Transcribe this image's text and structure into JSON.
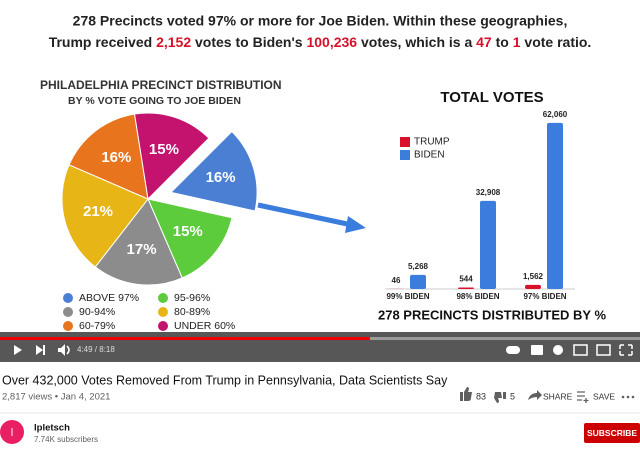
{
  "headline": {
    "line1": "278 Precincts voted 97% or more for Joe Biden. Within these geographies,",
    "line2": [
      {
        "text": "Trump received ",
        "highlight": false
      },
      {
        "text": "2,152",
        "highlight": true
      },
      {
        "text": " votes to Biden's ",
        "highlight": false
      },
      {
        "text": "100,236",
        "highlight": true
      },
      {
        "text": " votes, which is a ",
        "highlight": false
      },
      {
        "text": "47",
        "highlight": true
      },
      {
        "text": " to ",
        "highlight": false
      },
      {
        "text": "1",
        "highlight": true
      },
      {
        "text": " vote ratio.",
        "highlight": false
      }
    ]
  },
  "pie_chart": {
    "type": "pie",
    "title": "PHILADELPHIA PRECINCT DISTRIBUTION",
    "subtitle": "BY % VOTE GOING TO JOE BIDEN",
    "categories": [
      "ABOVE 97%",
      "95-96%",
      "90-94%",
      "80-89%",
      "60-79%",
      "UNDER 60%"
    ],
    "values": [
      16,
      15,
      17,
      21,
      16,
      15
    ],
    "value_labels": [
      "16%",
      "15%",
      "17%",
      "21%",
      "16%",
      "15%"
    ],
    "colors": [
      "#4a7fd4",
      "#5ccb3c",
      "#8c8c8c",
      "#e8b517",
      "#e8741e",
      "#c4136e"
    ],
    "exploded": 0
  },
  "bar_chart": {
    "type": "bar",
    "title": "TOTAL VOTES",
    "categories": [
      "99% BIDEN",
      "98% BIDEN",
      "97% BIDEN"
    ],
    "series": [
      {
        "name": "TRUMP",
        "color": "#d9102a",
        "values": [
          46,
          544,
          1562
        ],
        "value_labels": [
          "46",
          "544",
          "1,562"
        ]
      },
      {
        "name": "BIDEN",
        "color": "#3b7ddd",
        "values": [
          5268,
          32908,
          62060
        ],
        "value_labels": [
          "5,268",
          "32,908",
          "62,060"
        ]
      }
    ],
    "ylim": [
      0,
      65000
    ],
    "footnote": "278 PRECINCTS DISTRIBUTED BY %"
  },
  "player": {
    "time": "4:49 / 8:18"
  },
  "video": {
    "title": "Over 432,000 Votes Removed From Trump in Pennsylvania, Data Scientists Say",
    "meta": "2,817 views • Jan 4, 2021",
    "likes": 83,
    "dislikes": 5,
    "share": "SHARE",
    "save": "SAVE"
  },
  "channel": {
    "initial": "l",
    "name": "lpletsch",
    "subscribers": "7.74K subscribers",
    "subscribe": "SUBSCRIBE"
  }
}
